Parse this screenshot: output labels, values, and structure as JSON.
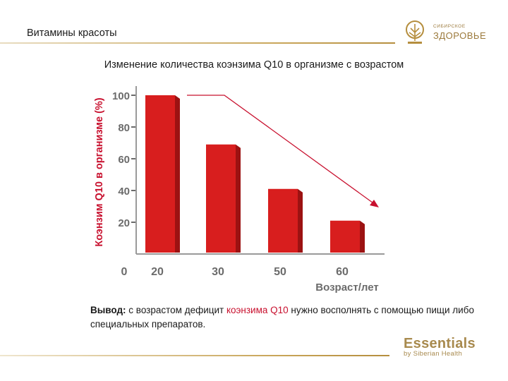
{
  "header": {
    "title": "Витамины красоты"
  },
  "logo_top": {
    "line1": "Сибирское",
    "line2": "ЗДОРОВЬЕ"
  },
  "chart_data": {
    "type": "bar",
    "title": "Изменение количества коэнзима Q10 в организме с возрастом",
    "ylabel": "Коэнзим Q10 в организме (%)",
    "xlabel": "Возраст/лет",
    "categories": [
      "20",
      "30",
      "50",
      "60"
    ],
    "values": [
      100,
      69,
      41,
      21
    ],
    "y_ticks": [
      "20",
      "40",
      "60",
      "80",
      "100"
    ],
    "origin_label": "0",
    "ylim": [
      0,
      100
    ],
    "bar_color": "#d81e1e",
    "grid": false,
    "trend_arrow": true
  },
  "conclusion": {
    "label": "Вывод:",
    "text1": " с возрастом дефицит ",
    "highlight": "коэнзима Q10",
    "text2": " нужно восполнять с помощью пищи либо специальных препаратов."
  },
  "footer": {
    "brand": "Essentials",
    "sub": "by Siberian Health"
  },
  "colors": {
    "accent_red": "#c8102e",
    "gold": "#b58e3e"
  }
}
